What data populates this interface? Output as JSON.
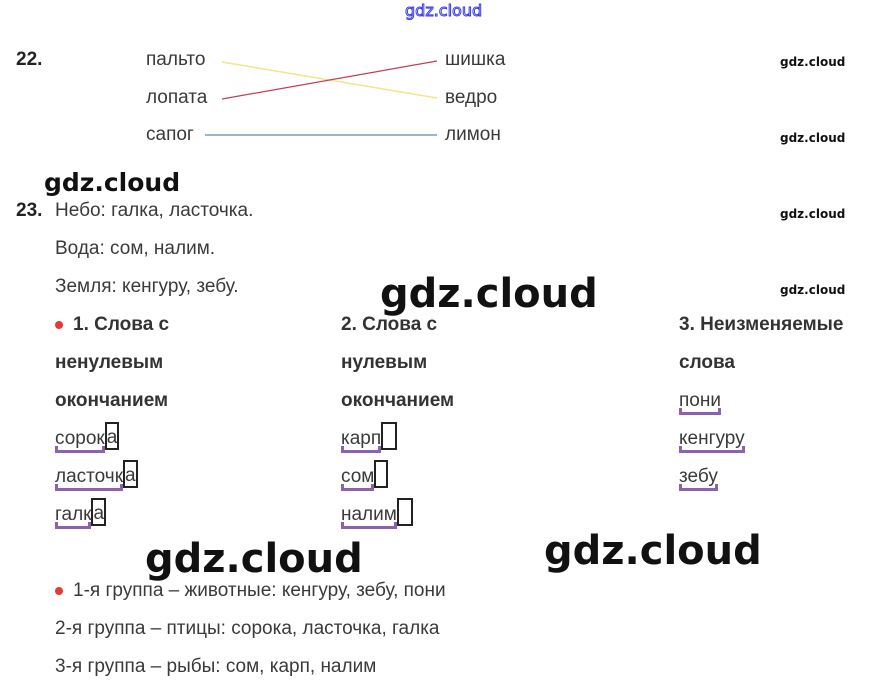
{
  "watermarks": {
    "top": "gdz.cloud",
    "small": "gdz.cloud",
    "large": "gdz.cloud"
  },
  "task22": {
    "number": "22.",
    "left": [
      "пальто",
      "лопата",
      "сапог"
    ],
    "right": [
      "шишка",
      "ведро",
      "лимон"
    ],
    "line_colors": {
      "пальто-ведро": "#f0e68c",
      "лопата-шишка": "#c04050",
      "сапог-лимон": "#5a8ab0"
    }
  },
  "task23": {
    "number": "23.",
    "lines": [
      "Небо: галка, ласточка.",
      "Вода: сом, налим.",
      "Земля: кенгуру, зебу."
    ],
    "columns": [
      {
        "title": [
          "1. Слова с",
          "ненулевым",
          "окончанием"
        ],
        "words": [
          {
            "stem": "сорок",
            "ending": "а"
          },
          {
            "stem": "ласточк",
            "ending": "а"
          },
          {
            "stem": "галк",
            "ending": "а"
          }
        ]
      },
      {
        "title": [
          "2. Слова с",
          "нулевым",
          "окончанием"
        ],
        "words": [
          {
            "stem": "карп",
            "ending": ""
          },
          {
            "stem": "сом",
            "ending": ""
          },
          {
            "stem": "налим",
            "ending": ""
          }
        ]
      },
      {
        "title": [
          "3.  Неизменяемые",
          "слова"
        ],
        "words": [
          {
            "stem": "пони"
          },
          {
            "stem": "кенгуру"
          },
          {
            "stem": "зебу"
          }
        ]
      }
    ],
    "groups": [
      "1-я группа – животные: кенгуру, зебу, пони",
      "2-я группа – птицы: сорока, ласточка, галка",
      "3-я группа – рыбы: сом, карп, налим"
    ],
    "colors": {
      "bullet": "#e53a3a",
      "stem_mark": "#9060b0"
    }
  }
}
